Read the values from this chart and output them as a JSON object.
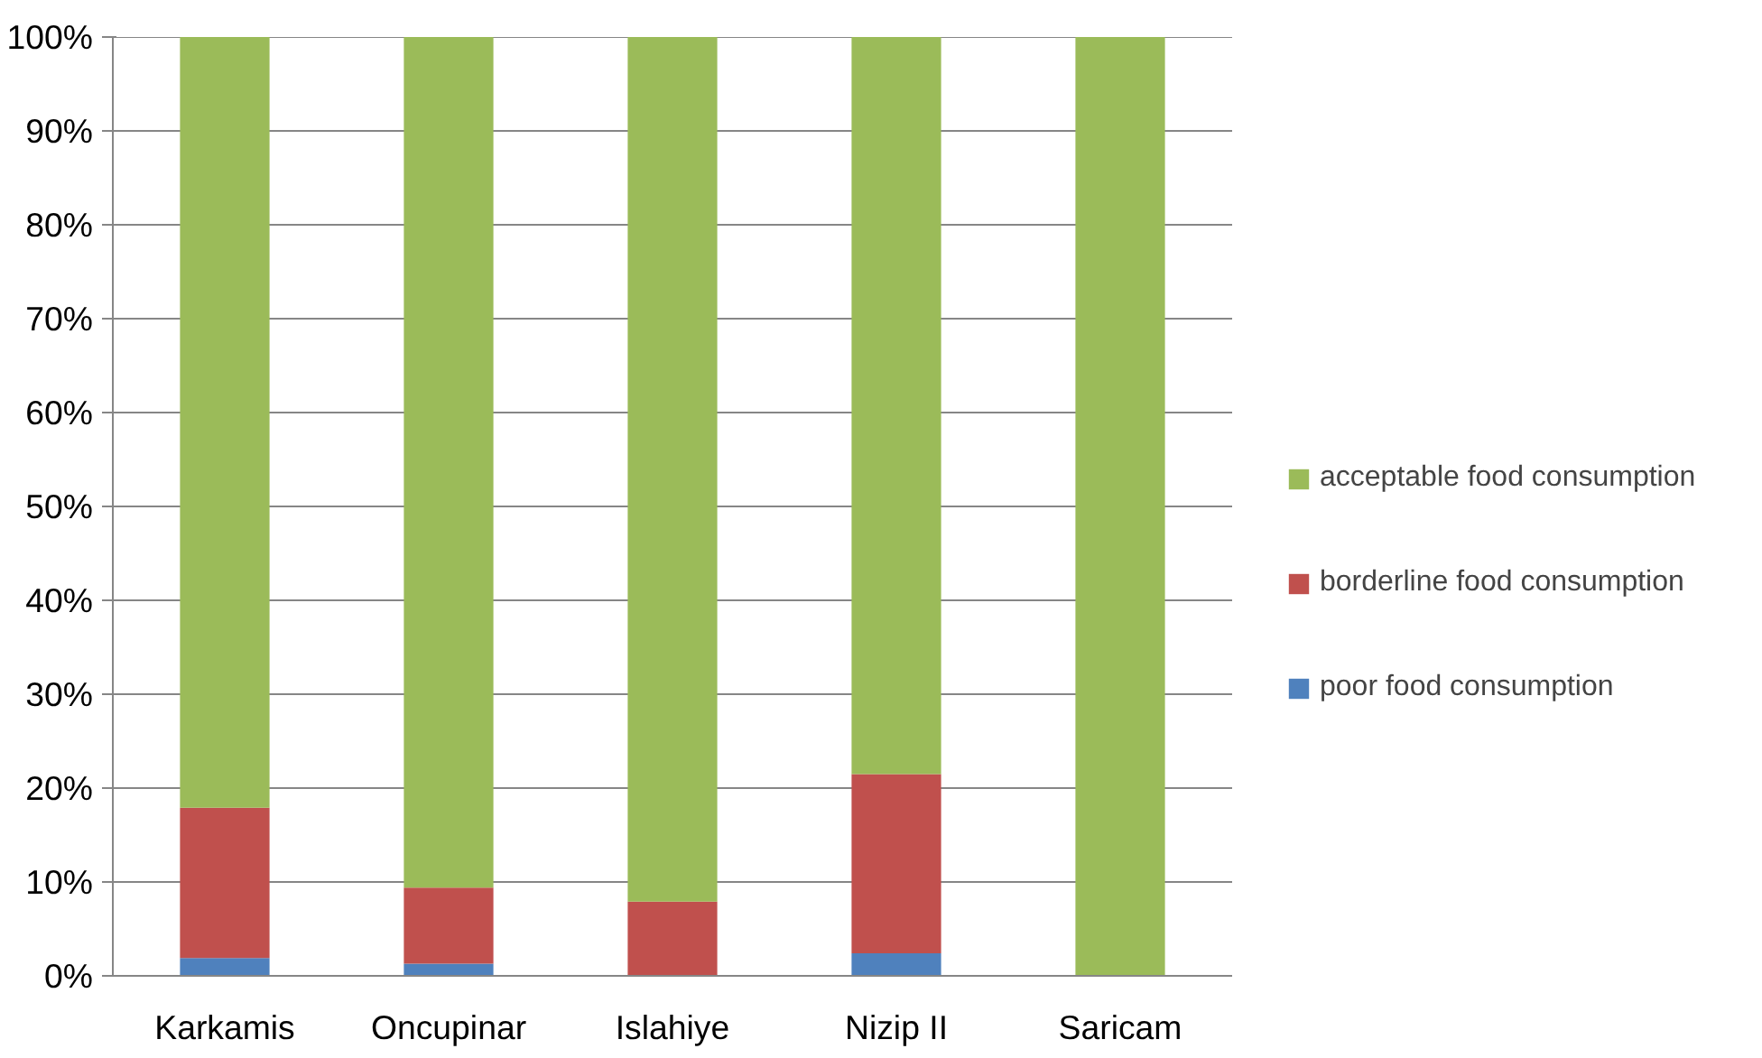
{
  "chart_data": {
    "type": "bar",
    "stacked": true,
    "categories": [
      "Karkamis",
      "Oncupinar",
      "Islahiye",
      "Nizip II",
      "Saricam"
    ],
    "series": [
      {
        "name": "poor food consumption",
        "color": "#4f81bd",
        "values": [
          1.9,
          1.3,
          0,
          2.4,
          0
        ]
      },
      {
        "name": "borderline food consumption",
        "color": "#c0504d",
        "values": [
          16.0,
          8.1,
          7.9,
          19.1,
          0
        ]
      },
      {
        "name": "acceptable food consumption",
        "color": "#9bbb59",
        "values": [
          82.1,
          90.6,
          92.1,
          78.5,
          100
        ]
      }
    ],
    "ylim": [
      0,
      100
    ],
    "yticks": [
      {
        "value": 0,
        "label": "0%"
      },
      {
        "value": 10,
        "label": "10%"
      },
      {
        "value": 20,
        "label": "20%"
      },
      {
        "value": 30,
        "label": "30%"
      },
      {
        "value": 40,
        "label": "40%"
      },
      {
        "value": 50,
        "label": "50%"
      },
      {
        "value": 60,
        "label": "60%"
      },
      {
        "value": 70,
        "label": "70%"
      },
      {
        "value": 80,
        "label": "80%"
      },
      {
        "value": 90,
        "label": "90%"
      },
      {
        "value": 100,
        "label": "100%"
      }
    ],
    "grid": "y",
    "legend": "right"
  }
}
